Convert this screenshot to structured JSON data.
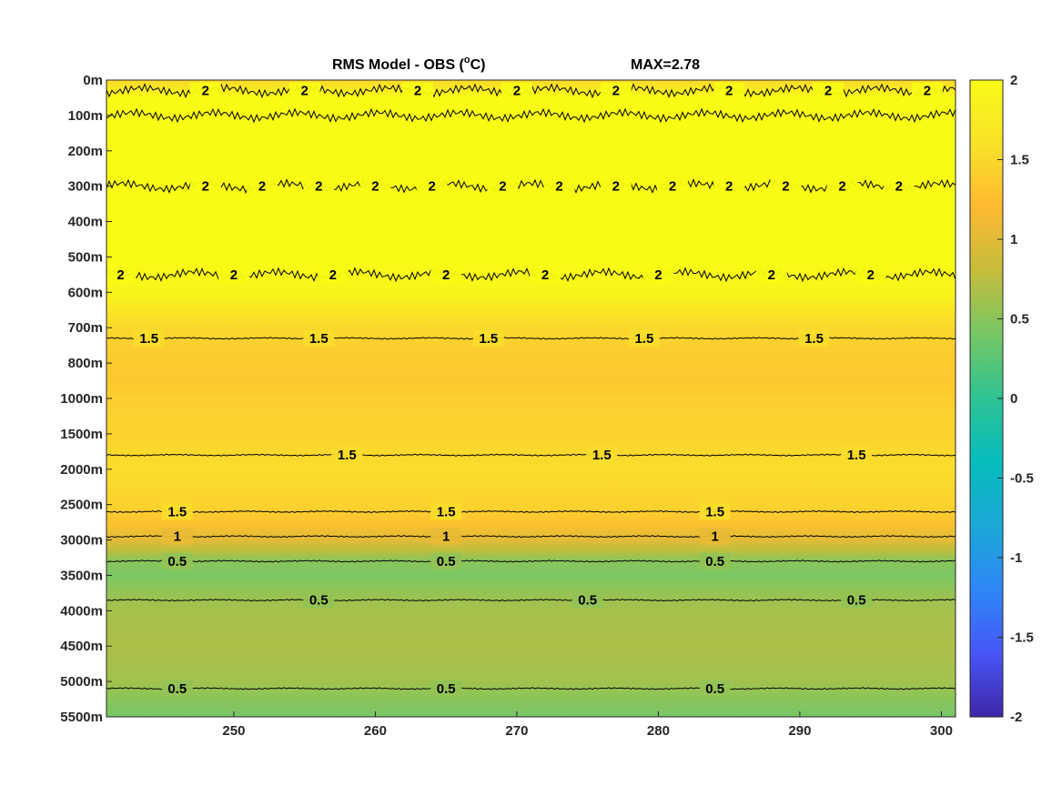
{
  "chart_data": {
    "type": "heatmap",
    "title": "RMS Model - OBS (",
    "title_superscript": "o",
    "title_suffix": "C)",
    "max_label": "MAX=2.78",
    "x_ticks": [
      250,
      260,
      270,
      280,
      290,
      300
    ],
    "x_range": [
      241,
      301
    ],
    "y_tick_labels": [
      "0m",
      "100m",
      "200m",
      "300m",
      "400m",
      "500m",
      "600m",
      "700m",
      "800m",
      "1000m",
      "1500m",
      "2000m",
      "2500m",
      "3000m",
      "3500m",
      "4000m",
      "4500m",
      "5000m",
      "5500m"
    ],
    "colorbar": {
      "range": [
        -2,
        2
      ],
      "ticks": [
        2,
        1.5,
        1,
        0.5,
        0,
        -0.5,
        -1,
        -1.5,
        -2
      ],
      "tick_labels": [
        "2",
        "1.5",
        "1",
        "0.5",
        "0",
        "-0.5",
        "-1",
        "-1.5",
        "-2"
      ],
      "colormap": "parula",
      "colors": [
        "#3e26a8",
        "#4856f7",
        "#2e87f7",
        "#1ba8d6",
        "#06bcbd",
        "#2ec393",
        "#76c765",
        "#c5bd3b",
        "#feb931",
        "#f9e22a",
        "#f9fb15"
      ]
    },
    "depth_profile": {
      "depth_index": [
        0,
        0.5,
        1,
        2,
        3,
        5,
        6,
        7,
        7.5,
        8.5,
        9,
        10,
        11,
        12,
        12.5,
        13,
        13.3,
        13.6,
        14,
        14.5,
        15,
        16,
        17,
        17.6,
        18
      ],
      "rms": [
        1.5,
        2,
        2,
        2,
        2,
        2,
        1.9,
        1.5,
        1.4,
        1.35,
        1.4,
        1.45,
        1.55,
        1.45,
        1.3,
        1.0,
        0.75,
        0.5,
        0.42,
        0.55,
        0.65,
        0.68,
        0.62,
        0.48,
        0.4
      ]
    },
    "contours": [
      {
        "level": 2,
        "label": "2",
        "depth_index": 0.3,
        "labels_at": [
          248,
          255,
          263,
          270,
          277,
          285,
          292,
          299
        ]
      },
      {
        "level": 2,
        "label": "2",
        "depth_index": 1.0
      },
      {
        "level": 2,
        "label": "2",
        "depth_index": 3.0,
        "labels_at": [
          248,
          252,
          256,
          260,
          264,
          269,
          273,
          277,
          281,
          285,
          289,
          293,
          297
        ]
      },
      {
        "level": 2,
        "label": "2",
        "depth_index": 5.5,
        "labels_at": [
          242,
          250,
          257,
          265,
          272,
          280,
          288,
          295
        ]
      },
      {
        "level": 1.5,
        "label": "1.5",
        "depth_index": 7.3,
        "labels_at": [
          244,
          256,
          268,
          279,
          291
        ]
      },
      {
        "level": 1.5,
        "label": "1.5",
        "depth_index": 10.6,
        "labels_at": [
          258,
          276,
          294
        ]
      },
      {
        "level": 1.5,
        "label": "1.5",
        "depth_index": 12.2,
        "labels_at": [
          246,
          265,
          284
        ]
      },
      {
        "level": 1,
        "label": "1",
        "depth_index": 12.9,
        "labels_at": [
          246,
          265,
          284
        ]
      },
      {
        "level": 0.5,
        "label": "0.5",
        "depth_index": 13.6,
        "labels_at": [
          246,
          265,
          284
        ]
      },
      {
        "level": 0.5,
        "label": "0.5",
        "depth_index": 14.7,
        "labels_at": [
          256,
          275,
          294
        ]
      },
      {
        "level": 0.5,
        "label": "0.5",
        "depth_index": 17.2,
        "labels_at": [
          246,
          265,
          284
        ]
      }
    ]
  }
}
